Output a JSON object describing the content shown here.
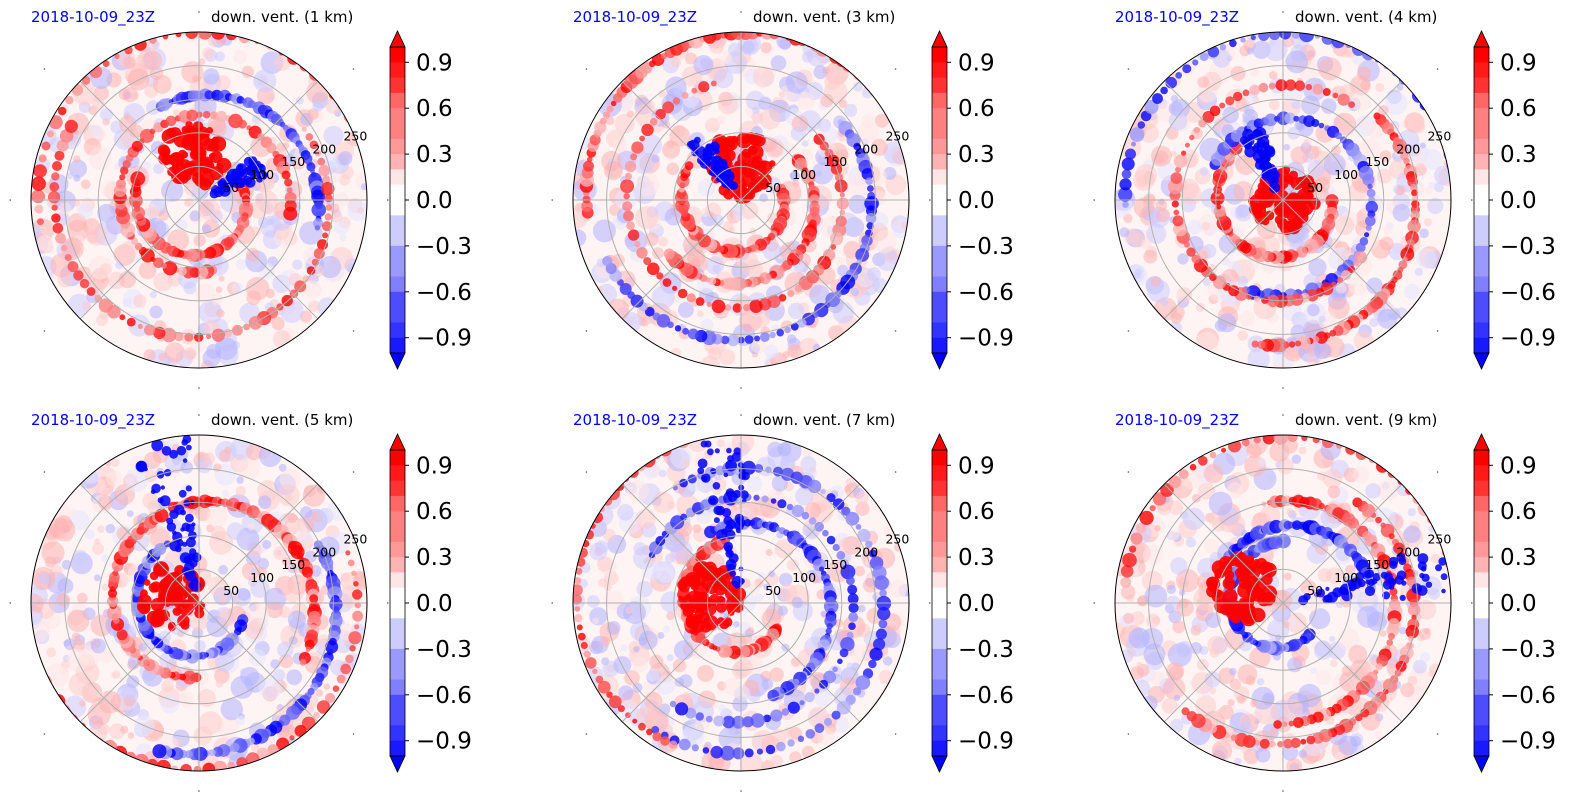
{
  "chart_data": [
    {
      "type": "heatmap",
      "projection": "polar",
      "date_label": "2018-10-09_23Z",
      "title": "down. vent. (1 km)",
      "r_ticks": [
        "50",
        "100",
        "150",
        "200",
        "250"
      ],
      "colorbar": {
        "ticks": [
          "0.9",
          "0.6",
          "0.3",
          "0.0",
          "−0.3",
          "−0.6",
          "−0.9"
        ],
        "range": [
          -1.0,
          1.0
        ],
        "extend": "both",
        "cmap": "bwr"
      }
    },
    {
      "type": "heatmap",
      "projection": "polar",
      "date_label": "2018-10-09_23Z",
      "title": "down. vent. (3 km)",
      "r_ticks": [
        "50",
        "100",
        "150",
        "200",
        "250"
      ],
      "colorbar": {
        "ticks": [
          "0.9",
          "0.6",
          "0.3",
          "0.0",
          "−0.3",
          "−0.6",
          "−0.9"
        ],
        "range": [
          -1.0,
          1.0
        ],
        "extend": "both",
        "cmap": "bwr"
      }
    },
    {
      "type": "heatmap",
      "projection": "polar",
      "date_label": "2018-10-09_23Z",
      "title": "down. vent. (4 km)",
      "r_ticks": [
        "50",
        "100",
        "150",
        "200",
        "250"
      ],
      "colorbar": {
        "ticks": [
          "0.9",
          "0.6",
          "0.3",
          "0.0",
          "−0.3",
          "−0.6",
          "−0.9"
        ],
        "range": [
          -1.0,
          1.0
        ],
        "extend": "both",
        "cmap": "bwr"
      }
    },
    {
      "type": "heatmap",
      "projection": "polar",
      "date_label": "2018-10-09_23Z",
      "title": "down. vent. (5 km)",
      "r_ticks": [
        "50",
        "100",
        "150",
        "200",
        "250"
      ],
      "colorbar": {
        "ticks": [
          "0.9",
          "0.6",
          "0.3",
          "0.0",
          "−0.3",
          "−0.6",
          "−0.9"
        ],
        "range": [
          -1.0,
          1.0
        ],
        "extend": "both",
        "cmap": "bwr"
      }
    },
    {
      "type": "heatmap",
      "projection": "polar",
      "date_label": "2018-10-09_23Z",
      "title": "down. vent. (7 km)",
      "r_ticks": [
        "50",
        "100",
        "150",
        "200",
        "250"
      ],
      "colorbar": {
        "ticks": [
          "0.9",
          "0.6",
          "0.3",
          "0.0",
          "−0.3",
          "−0.6",
          "−0.9"
        ],
        "range": [
          -1.0,
          1.0
        ],
        "extend": "both",
        "cmap": "bwr"
      }
    },
    {
      "type": "heatmap",
      "projection": "polar",
      "date_label": "2018-10-09_23Z",
      "title": "down. vent. (9 km)",
      "r_ticks": [
        "50",
        "100",
        "150",
        "200",
        "250"
      ],
      "colorbar": {
        "ticks": [
          "0.9",
          "0.6",
          "0.3",
          "0.0",
          "−0.3",
          "−0.6",
          "−0.9"
        ],
        "range": [
          -1.0,
          1.0
        ],
        "extend": "both",
        "cmap": "bwr"
      }
    }
  ],
  "colors": {
    "positive": "#ff0000",
    "negative": "#0000ff",
    "neutral": "#ffffff",
    "grid": "#b0b0b0",
    "date_text": "#0000ff"
  }
}
